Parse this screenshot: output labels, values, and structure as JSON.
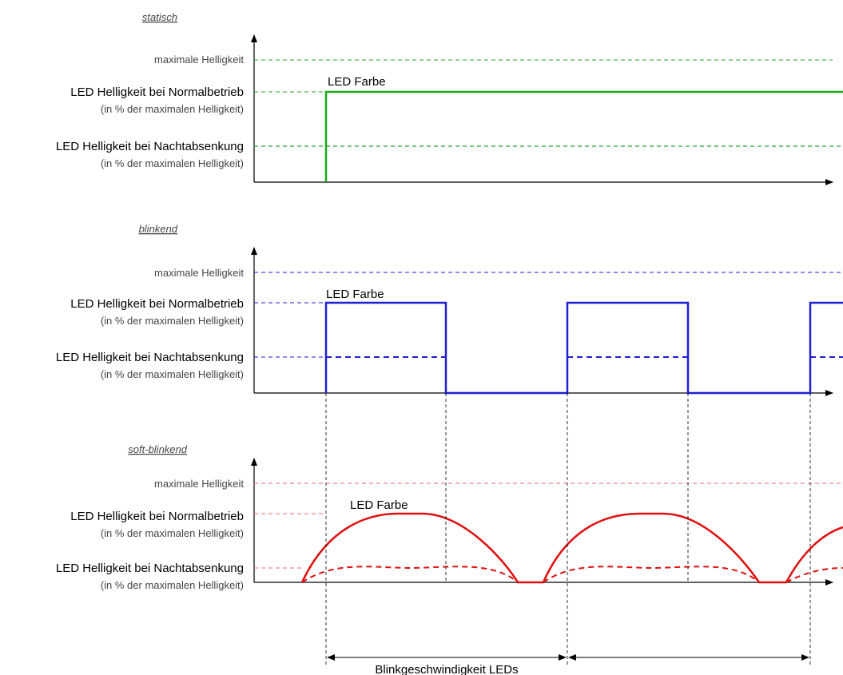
{
  "labels": {
    "max": "maximale Helligkeit",
    "normal": "LED Helligkeit bei Normalbetrieb",
    "night": "LED Helligkeit bei Nachtabsenkung",
    "sub": "(in % der maximalen Helligkeit)",
    "led_farbe": "LED Farbe",
    "blink_speed": "Blinkgeschwindigkeit LEDs"
  },
  "panels": [
    {
      "title": "statisch",
      "mode": "static",
      "color": "#1aaa1a"
    },
    {
      "title": "blinkend",
      "mode": "blink",
      "color": "#1f1fd6"
    },
    {
      "title": "soft-blinkend",
      "mode": "soft",
      "color": "#e01010"
    }
  ]
}
